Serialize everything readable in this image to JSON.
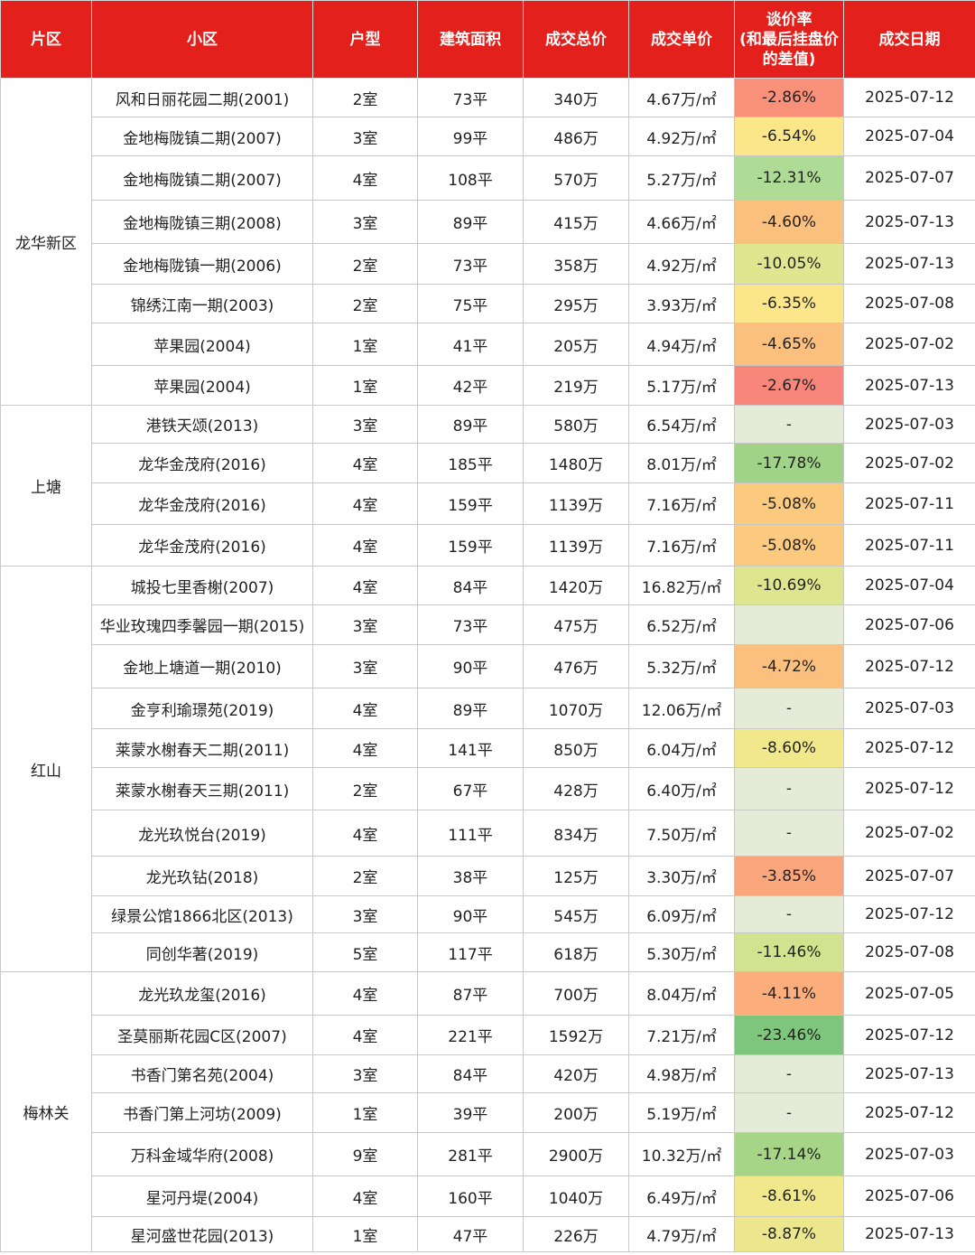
{
  "headers": [
    "片区",
    "小区",
    "户型",
    "建筑面积",
    "成交总价",
    "成交单价",
    "谈价率\n(和最后挂盘价\n的差值)",
    "成交日期"
  ],
  "groups": [
    {
      "district": "龙华新区",
      "rows": [
        {
          "community": "风和日丽花园二期(2001)",
          "layout": "2室",
          "area": "73平",
          "total": "340万",
          "unit": "4.67万/㎡",
          "rate": "-2.86%",
          "rate_color": "#f9907a",
          "date": "2025-07-12"
        },
        {
          "community": "金地梅陇镇二期(2007)",
          "layout": "3室",
          "area": "99平",
          "total": "486万",
          "unit": "4.92万/㎡",
          "rate": "-6.54%",
          "rate_color": "#fbe68a",
          "date": "2025-07-04"
        },
        {
          "community": "金地梅陇镇二期(2007)",
          "layout": "4室",
          "area": "108平",
          "total": "570万",
          "unit": "5.27万/㎡",
          "rate": "-12.31%",
          "rate_color": "#aedb95",
          "date": "2025-07-07"
        },
        {
          "community": "金地梅陇镇三期(2008)",
          "layout": "3室",
          "area": "89平",
          "total": "415万",
          "unit": "4.66万/㎡",
          "rate": "-4.60%",
          "rate_color": "#fbbf7e",
          "date": "2025-07-13"
        },
        {
          "community": "金地梅陇镇一期(2006)",
          "layout": "2室",
          "area": "73平",
          "total": "358万",
          "unit": "4.92万/㎡",
          "rate": "-10.05%",
          "rate_color": "#dfe68f",
          "date": "2025-07-13"
        },
        {
          "community": "锦绣江南一期(2003)",
          "layout": "2室",
          "area": "75平",
          "total": "295万",
          "unit": "3.93万/㎡",
          "rate": "-6.35%",
          "rate_color": "#fbe68a",
          "date": "2025-07-08"
        },
        {
          "community": "苹果园(2004)",
          "layout": "1室",
          "area": "41平",
          "total": "205万",
          "unit": "4.94万/㎡",
          "rate": "-4.65%",
          "rate_color": "#fbbf7e",
          "date": "2025-07-02"
        },
        {
          "community": "苹果园(2004)",
          "layout": "1室",
          "area": "42平",
          "total": "219万",
          "unit": "5.17万/㎡",
          "rate": "-2.67%",
          "rate_color": "#f8867a",
          "date": "2025-07-13"
        }
      ]
    },
    {
      "district": "上塘",
      "rows": [
        {
          "community": "港铁天颂(2013)",
          "layout": "3室",
          "area": "89平",
          "total": "580万",
          "unit": "6.54万/㎡",
          "rate": "-",
          "rate_color": "#e4ecd8",
          "date": "2025-07-03"
        },
        {
          "community": "龙华金茂府(2016)",
          "layout": "4室",
          "area": "185平",
          "total": "1480万",
          "unit": "8.01万/㎡",
          "rate": "-17.78%",
          "rate_color": "#a0d387",
          "date": "2025-07-02"
        },
        {
          "community": "龙华金茂府(2016)",
          "layout": "4室",
          "area": "159平",
          "total": "1139万",
          "unit": "7.16万/㎡",
          "rate": "-5.08%",
          "rate_color": "#fcca7e",
          "date": "2025-07-11"
        },
        {
          "community": "龙华金茂府(2016)",
          "layout": "4室",
          "area": "159平",
          "total": "1139万",
          "unit": "7.16万/㎡",
          "rate": "-5.08%",
          "rate_color": "#fcca7e",
          "date": "2025-07-11"
        }
      ]
    },
    {
      "district": "红山",
      "rows": [
        {
          "community": "城投七里香榭(2007)",
          "layout": "4室",
          "area": "84平",
          "total": "1420万",
          "unit": "16.82万/㎡",
          "rate": "-10.69%",
          "rate_color": "#dde68f",
          "date": "2025-07-04"
        },
        {
          "community": "华业玫瑰四季馨园一期(2015)",
          "layout": "3室",
          "area": "73平",
          "total": "475万",
          "unit": "6.52万/㎡",
          "rate": "",
          "rate_color": "#e4ecd8",
          "date": "2025-07-06"
        },
        {
          "community": "金地上塘道一期(2010)",
          "layout": "3室",
          "area": "90平",
          "total": "476万",
          "unit": "5.32万/㎡",
          "rate": "-4.72%",
          "rate_color": "#fbbf7e",
          "date": "2025-07-12"
        },
        {
          "community": "金亨利瑜璟苑(2019)",
          "layout": "4室",
          "area": "89平",
          "total": "1070万",
          "unit": "12.06万/㎡",
          "rate": "-",
          "rate_color": "#e4ecd8",
          "date": "2025-07-03"
        },
        {
          "community": "莱蒙水榭春天二期(2011)",
          "layout": "4室",
          "area": "141平",
          "total": "850万",
          "unit": "6.04万/㎡",
          "rate": "-8.60%",
          "rate_color": "#f1e88c",
          "date": "2025-07-12"
        },
        {
          "community": "莱蒙水榭春天三期(2011)",
          "layout": "2室",
          "area": "67平",
          "total": "428万",
          "unit": "6.40万/㎡",
          "rate": "-",
          "rate_color": "#e4ecd8",
          "date": "2025-07-12"
        },
        {
          "community": "龙光玖悦台(2019)",
          "layout": "4室",
          "area": "111平",
          "total": "834万",
          "unit": "7.50万/㎡",
          "rate": "-",
          "rate_color": "#e4ecd8",
          "date": "2025-07-02"
        },
        {
          "community": "龙光玖钻(2018)",
          "layout": "2室",
          "area": "38平",
          "total": "125万",
          "unit": "3.30万/㎡",
          "rate": "-3.85%",
          "rate_color": "#faa67c",
          "date": "2025-07-07"
        },
        {
          "community": "绿景公馆1866北区(2013)",
          "layout": "3室",
          "area": "90平",
          "total": "545万",
          "unit": "6.09万/㎡",
          "rate": "-",
          "rate_color": "#e4ecd8",
          "date": "2025-07-12"
        },
        {
          "community": "同创华著(2019)",
          "layout": "5室",
          "area": "117平",
          "total": "618万",
          "unit": "5.30万/㎡",
          "rate": "-11.46%",
          "rate_color": "#d2e28f",
          "date": "2025-07-08"
        }
      ]
    },
    {
      "district": "梅林关",
      "rows": [
        {
          "community": "龙光玖龙玺(2016)",
          "layout": "4室",
          "area": "87平",
          "total": "700万",
          "unit": "8.04万/㎡",
          "rate": "-4.11%",
          "rate_color": "#fbae7c",
          "date": "2025-07-05"
        },
        {
          "community": "圣莫丽斯花园C区(2007)",
          "layout": "4室",
          "area": "221平",
          "total": "1592万",
          "unit": "7.21万/㎡",
          "rate": "-23.46%",
          "rate_color": "#7fc67d",
          "date": "2025-07-12"
        },
        {
          "community": "书香门第名苑(2004)",
          "layout": "3室",
          "area": "84平",
          "total": "420万",
          "unit": "4.98万/㎡",
          "rate": "-",
          "rate_color": "#e4ecd8",
          "date": "2025-07-13"
        },
        {
          "community": "书香门第上河坊(2009)",
          "layout": "1室",
          "area": "39平",
          "total": "200万",
          "unit": "5.19万/㎡",
          "rate": "-",
          "rate_color": "#e4ecd8",
          "date": "2025-07-12"
        },
        {
          "community": "万科金域华府(2008)",
          "layout": "9室",
          "area": "281平",
          "total": "2900万",
          "unit": "10.32万/㎡",
          "rate": "-17.14%",
          "rate_color": "#a6d588",
          "date": "2025-07-03"
        },
        {
          "community": "星河丹堤(2004)",
          "layout": "4室",
          "area": "160平",
          "total": "1040万",
          "unit": "6.49万/㎡",
          "rate": "-8.61%",
          "rate_color": "#f1e88c",
          "date": "2025-07-06"
        },
        {
          "community": "星河盛世花园(2013)",
          "layout": "1室",
          "area": "47平",
          "total": "226万",
          "unit": "4.79万/㎡",
          "rate": "-8.87%",
          "rate_color": "#ece78d",
          "date": "2025-07-13"
        }
      ]
    }
  ]
}
